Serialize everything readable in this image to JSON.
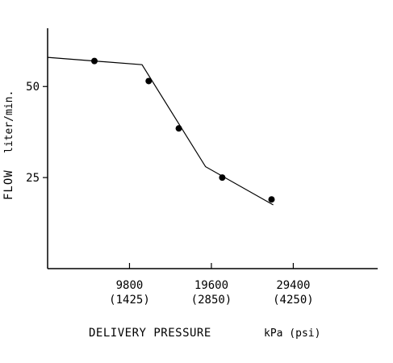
{
  "chart_data": {
    "type": "line",
    "title": "",
    "xlabel": "DELIVERY PRESSURE",
    "xlabel_units": "kPa (psi)",
    "ylabel": "FLOW",
    "ylabel_units": "liter/min.",
    "x_ticks": [
      {
        "value": 9800,
        "label": "9800",
        "sublabel": "(1425)"
      },
      {
        "value": 19600,
        "label": "19600",
        "sublabel": "(2850)"
      },
      {
        "value": 29400,
        "label": "29400",
        "sublabel": "(4250)"
      }
    ],
    "y_ticks": [
      {
        "value": 25,
        "label": "25"
      },
      {
        "value": 50,
        "label": "50"
      }
    ],
    "xlim": [
      0,
      39500
    ],
    "ylim": [
      0,
      66
    ],
    "series": [
      {
        "line_x": [
          0,
          11300,
          18900,
          27000
        ],
        "line_y": [
          58,
          56,
          28,
          17.5
        ],
        "points_x": [
          5600,
          12100,
          15700,
          20900,
          26800
        ],
        "points_y": [
          57,
          51.5,
          38.5,
          25,
          19
        ]
      }
    ],
    "grid": false,
    "legend": "none",
    "color": "#000000"
  }
}
